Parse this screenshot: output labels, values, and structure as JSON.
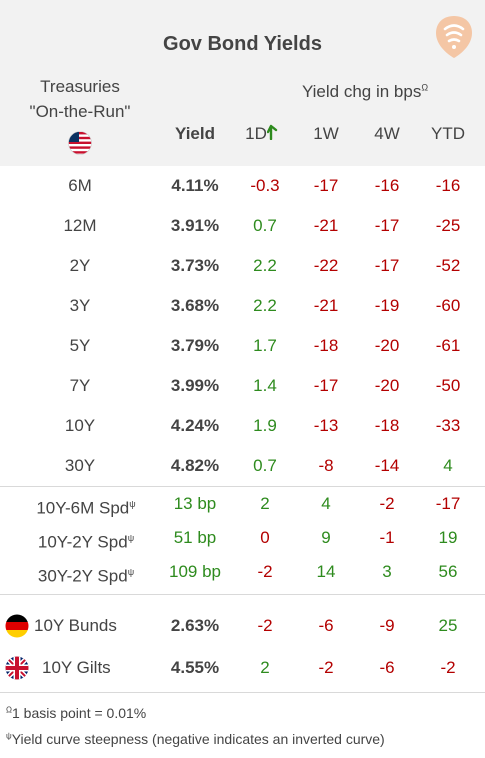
{
  "title": "Gov Bond Yields",
  "treasuries_label": {
    "line1": "Treasuries",
    "line2": "\"On-the-Run\""
  },
  "header": {
    "change_group": "Yield chg in bps",
    "change_group_sup": "Ω",
    "yield": "Yield",
    "d1": "1D",
    "w1": "1W",
    "w4": "4W",
    "ytd": "YTD"
  },
  "treasuries": [
    {
      "label": "6M",
      "yield": "4.11%",
      "d1": "-0.3",
      "w1": "-17",
      "w4": "-16",
      "ytd": "-16"
    },
    {
      "label": "12M",
      "yield": "3.91%",
      "d1": "0.7",
      "w1": "-21",
      "w4": "-17",
      "ytd": "-25"
    },
    {
      "label": "2Y",
      "yield": "3.73%",
      "d1": "2.2",
      "w1": "-22",
      "w4": "-17",
      "ytd": "-52"
    },
    {
      "label": "3Y",
      "yield": "3.68%",
      "d1": "2.2",
      "w1": "-21",
      "w4": "-19",
      "ytd": "-60"
    },
    {
      "label": "5Y",
      "yield": "3.79%",
      "d1": "1.7",
      "w1": "-18",
      "w4": "-20",
      "ytd": "-61"
    },
    {
      "label": "7Y",
      "yield": "3.99%",
      "d1": "1.4",
      "w1": "-17",
      "w4": "-20",
      "ytd": "-50"
    },
    {
      "label": "10Y",
      "yield": "4.24%",
      "d1": "1.9",
      "w1": "-13",
      "w4": "-18",
      "ytd": "-33"
    },
    {
      "label": "30Y",
      "yield": "4.82%",
      "d1": "0.7",
      "w1": "-8",
      "w4": "-14",
      "ytd": "4"
    }
  ],
  "spreads": [
    {
      "label": "10Y-6M Spd",
      "sup": "ψ",
      "yield": "13 bp",
      "d1": "2",
      "w1": "4",
      "w4": "-2",
      "ytd": "-17"
    },
    {
      "label": "10Y-2Y Spd",
      "sup": "ψ",
      "yield": "51 bp",
      "d1": "0",
      "w1": "9",
      "w4": "-1",
      "ytd": "19"
    },
    {
      "label": "30Y-2Y Spd",
      "sup": "ψ",
      "yield": "109 bp",
      "d1": "-2",
      "w1": "14",
      "w4": "3",
      "ytd": "56"
    }
  ],
  "intl": [
    {
      "label": "10Y Bunds",
      "yield": "2.63%",
      "d1": "-2",
      "w1": "-6",
      "w4": "-9",
      "ytd": "25",
      "flag": "germany-flag-icon"
    },
    {
      "label": "10Y Gilts",
      "yield": "4.55%",
      "d1": "2",
      "w1": "-2",
      "w4": "-6",
      "ytd": "-2",
      "flag": "uk-flag-icon"
    }
  ],
  "footnotes": [
    {
      "sup": "Ω",
      "text": "1 basis point = 0.01%"
    },
    {
      "sup": "ψ",
      "text": "Yield curve steepness (negative indicates an inverted curve)"
    }
  ],
  "colors": {
    "negative": "#b30000",
    "positive": "#2e8b1e",
    "header_bg": "#f2f2f2",
    "logo": "#f4c6a5"
  },
  "icons": [
    "us-flag-icon",
    "germany-flag-icon",
    "uk-flag-icon",
    "steepening-arrow-icon",
    "logo-icon"
  ]
}
